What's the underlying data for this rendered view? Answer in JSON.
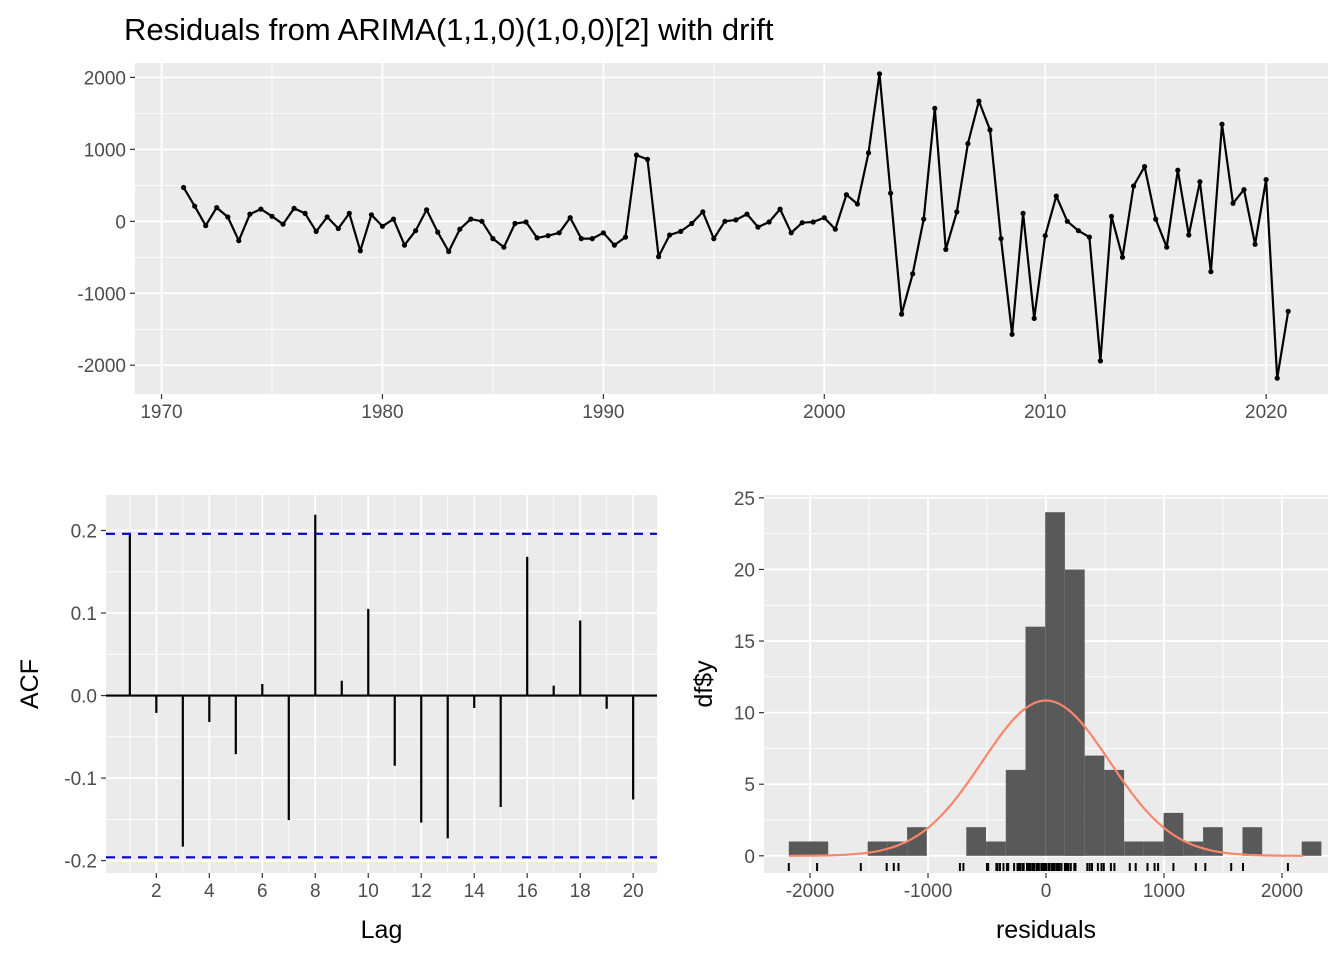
{
  "title": "Residuals from ARIMA(1,1,0)(1,0,0)[2] with drift",
  "colors": {
    "panel_bg": "#ebebeb",
    "grid": "#ffffff",
    "line": "#000000",
    "ci": "#0000cc",
    "hist_bar": "#595959",
    "density": "#f8866a",
    "tick_text": "#4d4d4d"
  },
  "chart_data": [
    {
      "type": "line",
      "title": "Residuals from ARIMA(1,1,0)(1,0,0)[2] with drift",
      "xlabel": "",
      "ylabel": "",
      "xlim": [
        1968.8,
        2022.8
      ],
      "ylim": [
        -2400,
        2200
      ],
      "x_ticks": [
        1970,
        1980,
        1990,
        2000,
        2010,
        2020
      ],
      "y_ticks": [
        -2000,
        -1000,
        0,
        1000,
        2000
      ],
      "grid": true,
      "x_start": 1971,
      "x_step": 0.5,
      "series": [
        {
          "values": [
            470,
            210,
            -60,
            190,
            60,
            -270,
            100,
            170,
            70,
            -40,
            180,
            110,
            -140,
            60,
            -100,
            110,
            -410,
            90,
            -70,
            30,
            -330,
            -130,
            160,
            -150,
            -420,
            -110,
            30,
            0,
            -240,
            -360,
            -30,
            -10,
            -230,
            -200,
            -160,
            50,
            -240,
            -240,
            -160,
            -330,
            -220,
            920,
            860,
            -490,
            -190,
            -140,
            -30,
            130,
            -240,
            0,
            20,
            100,
            -80,
            -10,
            170,
            -160,
            -20,
            -10,
            50,
            -110,
            370,
            240,
            950,
            2050,
            390,
            -1290,
            -730,
            30,
            1570,
            -390,
            130,
            1080,
            1670,
            1270,
            -240,
            -1570,
            110,
            -1350,
            -200,
            350,
            0,
            -130,
            -220,
            -1940,
            70,
            -500,
            490,
            760,
            30,
            -360,
            710,
            -190,
            550,
            -700,
            1350,
            250,
            440,
            -320,
            580,
            -2180,
            -1250
          ]
        }
      ]
    },
    {
      "type": "bar",
      "xlabel": "Lag",
      "ylabel": "ACF",
      "xlim": [
        0.1,
        20.9
      ],
      "ylim": [
        -0.215,
        0.243
      ],
      "x_ticks": [
        2,
        4,
        6,
        8,
        10,
        12,
        14,
        16,
        18,
        20
      ],
      "y_ticks": [
        -0.2,
        -0.1,
        0.0,
        0.1,
        0.2
      ],
      "y_tick_labels": [
        "-0.2",
        "-0.1",
        "0.0",
        "0.1",
        "0.2"
      ],
      "grid": true,
      "ci": 0.196,
      "categories": [
        1,
        2,
        3,
        4,
        5,
        6,
        7,
        8,
        9,
        10,
        11,
        12,
        13,
        14,
        15,
        16,
        17,
        18,
        19,
        20
      ],
      "values": [
        0.196,
        -0.021,
        -0.183,
        -0.032,
        -0.071,
        0.014,
        -0.151,
        0.219,
        0.018,
        0.105,
        -0.085,
        -0.154,
        -0.173,
        -0.015,
        -0.135,
        0.168,
        0.012,
        0.091,
        -0.016,
        -0.126
      ]
    },
    {
      "type": "bar",
      "xlabel": "residuals",
      "ylabel": "df$y",
      "xlim": [
        -2390,
        2390
      ],
      "ylim": [
        -1.2,
        25.2
      ],
      "x_ticks": [
        -2000,
        -1000,
        0,
        1000,
        2000
      ],
      "y_ticks": [
        0,
        5,
        10,
        15,
        20,
        25
      ],
      "grid": true,
      "bin_start": -2180,
      "bin_width": 167.2,
      "counts": [
        1,
        1,
        0,
        0,
        1,
        1,
        2,
        0,
        0,
        2,
        1,
        6,
        16,
        24,
        20,
        7,
        6,
        1,
        1,
        3,
        1,
        2,
        0,
        2,
        0,
        0,
        1
      ],
      "density_peak": 10.85,
      "density_mean": 0,
      "density_sd": 540,
      "rug": [
        470,
        210,
        -60,
        190,
        60,
        -270,
        100,
        170,
        70,
        -40,
        180,
        110,
        -140,
        60,
        -100,
        110,
        -410,
        90,
        -70,
        30,
        -330,
        -130,
        160,
        -150,
        -420,
        -110,
        30,
        0,
        -240,
        -360,
        -30,
        -10,
        -230,
        -200,
        -160,
        50,
        -240,
        -240,
        -160,
        -330,
        -220,
        920,
        860,
        -490,
        -190,
        -140,
        -30,
        130,
        -240,
        0,
        20,
        100,
        -80,
        -10,
        170,
        -160,
        -20,
        -10,
        50,
        -110,
        370,
        240,
        950,
        2050,
        390,
        -1290,
        -730,
        30,
        1570,
        -390,
        130,
        1080,
        1670,
        1270,
        -240,
        -1570,
        110,
        -1350,
        -200,
        350,
        0,
        -130,
        -220,
        -1940,
        70,
        -500,
        490,
        760,
        30,
        -360,
        710,
        -190,
        550,
        -700,
        1350,
        250,
        440,
        -320,
        580,
        -2180,
        -1250
      ]
    }
  ]
}
